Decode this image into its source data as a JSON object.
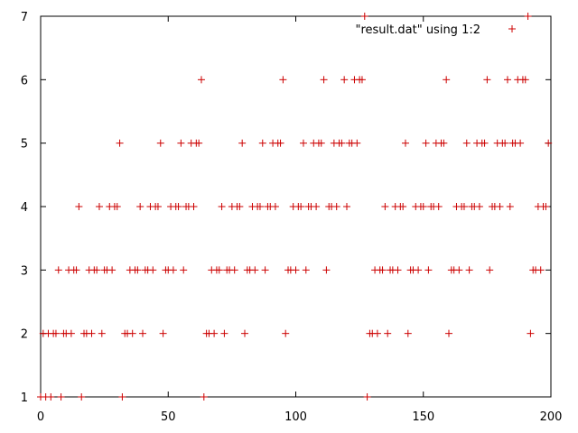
{
  "chart_data": {
    "type": "scatter",
    "xlim": [
      0,
      200
    ],
    "ylim": [
      1,
      7
    ],
    "xticks": [
      0,
      50,
      100,
      150,
      200
    ],
    "yticks": [
      1,
      2,
      3,
      4,
      5,
      6,
      7
    ],
    "grid": false,
    "legend_position": "top-right",
    "marker": "plus",
    "color": "#cc0000",
    "series": [
      {
        "name": "\"result.dat\" using 1:2",
        "x": [
          0,
          1,
          2,
          3,
          4,
          5,
          6,
          7,
          8,
          9,
          10,
          11,
          12,
          13,
          14,
          15,
          16,
          17,
          18,
          19,
          20,
          21,
          22,
          23,
          24,
          25,
          26,
          27,
          28,
          29,
          30,
          31,
          32,
          33,
          34,
          35,
          36,
          37,
          38,
          39,
          40,
          41,
          42,
          43,
          44,
          45,
          46,
          47,
          48,
          49,
          50,
          51,
          52,
          53,
          54,
          55,
          56,
          57,
          58,
          59,
          60,
          61,
          62,
          63,
          64,
          65,
          66,
          67,
          68,
          69,
          70,
          71,
          72,
          73,
          74,
          75,
          76,
          77,
          78,
          79,
          80,
          81,
          82,
          83,
          84,
          85,
          86,
          87,
          88,
          89,
          90,
          91,
          92,
          93,
          94,
          95,
          96,
          97,
          98,
          99,
          100,
          101,
          102,
          103,
          104,
          105,
          106,
          107,
          108,
          109,
          110,
          111,
          112,
          113,
          114,
          115,
          116,
          117,
          118,
          119,
          120,
          121,
          122,
          123,
          124,
          125,
          126,
          127,
          128,
          129,
          130,
          131,
          132,
          133,
          134,
          135,
          136,
          137,
          138,
          139,
          140,
          141,
          142,
          143,
          144,
          145,
          146,
          147,
          148,
          149,
          150,
          151,
          152,
          153,
          154,
          155,
          156,
          157,
          158,
          159,
          160,
          161,
          162,
          163,
          164,
          165,
          166,
          167,
          168,
          169,
          170,
          171,
          172,
          173,
          174,
          175,
          176,
          177,
          178,
          179,
          180,
          181,
          182,
          183,
          184,
          185,
          186,
          187,
          188,
          189,
          190,
          191,
          192,
          193,
          194,
          195,
          196,
          197,
          198,
          199
        ],
        "y": [
          1,
          2,
          1,
          2,
          1,
          2,
          2,
          3,
          1,
          2,
          2,
          3,
          2,
          3,
          3,
          4,
          1,
          2,
          2,
          3,
          2,
          3,
          3,
          4,
          2,
          3,
          3,
          4,
          3,
          4,
          4,
          5,
          1,
          2,
          2,
          3,
          2,
          3,
          3,
          4,
          2,
          3,
          3,
          4,
          3,
          4,
          4,
          5,
          2,
          3,
          3,
          4,
          3,
          4,
          4,
          5,
          3,
          4,
          4,
          5,
          4,
          5,
          5,
          6,
          1,
          2,
          2,
          3,
          2,
          3,
          3,
          4,
          2,
          3,
          3,
          4,
          3,
          4,
          4,
          5,
          2,
          3,
          3,
          4,
          3,
          4,
          4,
          5,
          3,
          4,
          4,
          5,
          4,
          5,
          5,
          6,
          2,
          3,
          3,
          4,
          3,
          4,
          4,
          5,
          3,
          4,
          4,
          5,
          4,
          5,
          5,
          6,
          3,
          4,
          4,
          5,
          4,
          5,
          5,
          6,
          4,
          5,
          5,
          6,
          5,
          6,
          6,
          7,
          1,
          2,
          2,
          3,
          2,
          3,
          3,
          4,
          2,
          3,
          3,
          4,
          3,
          4,
          4,
          5,
          2,
          3,
          3,
          4,
          3,
          4,
          4,
          5,
          3,
          4,
          4,
          5,
          4,
          5,
          5,
          6,
          2,
          3,
          3,
          4,
          3,
          4,
          4,
          5,
          3,
          4,
          4,
          5,
          4,
          5,
          5,
          6,
          3,
          4,
          4,
          5,
          4,
          5,
          5,
          6,
          4,
          5,
          5,
          6,
          5,
          6,
          6,
          7,
          2,
          3,
          3,
          4,
          3,
          4,
          4,
          5
        ]
      }
    ]
  }
}
